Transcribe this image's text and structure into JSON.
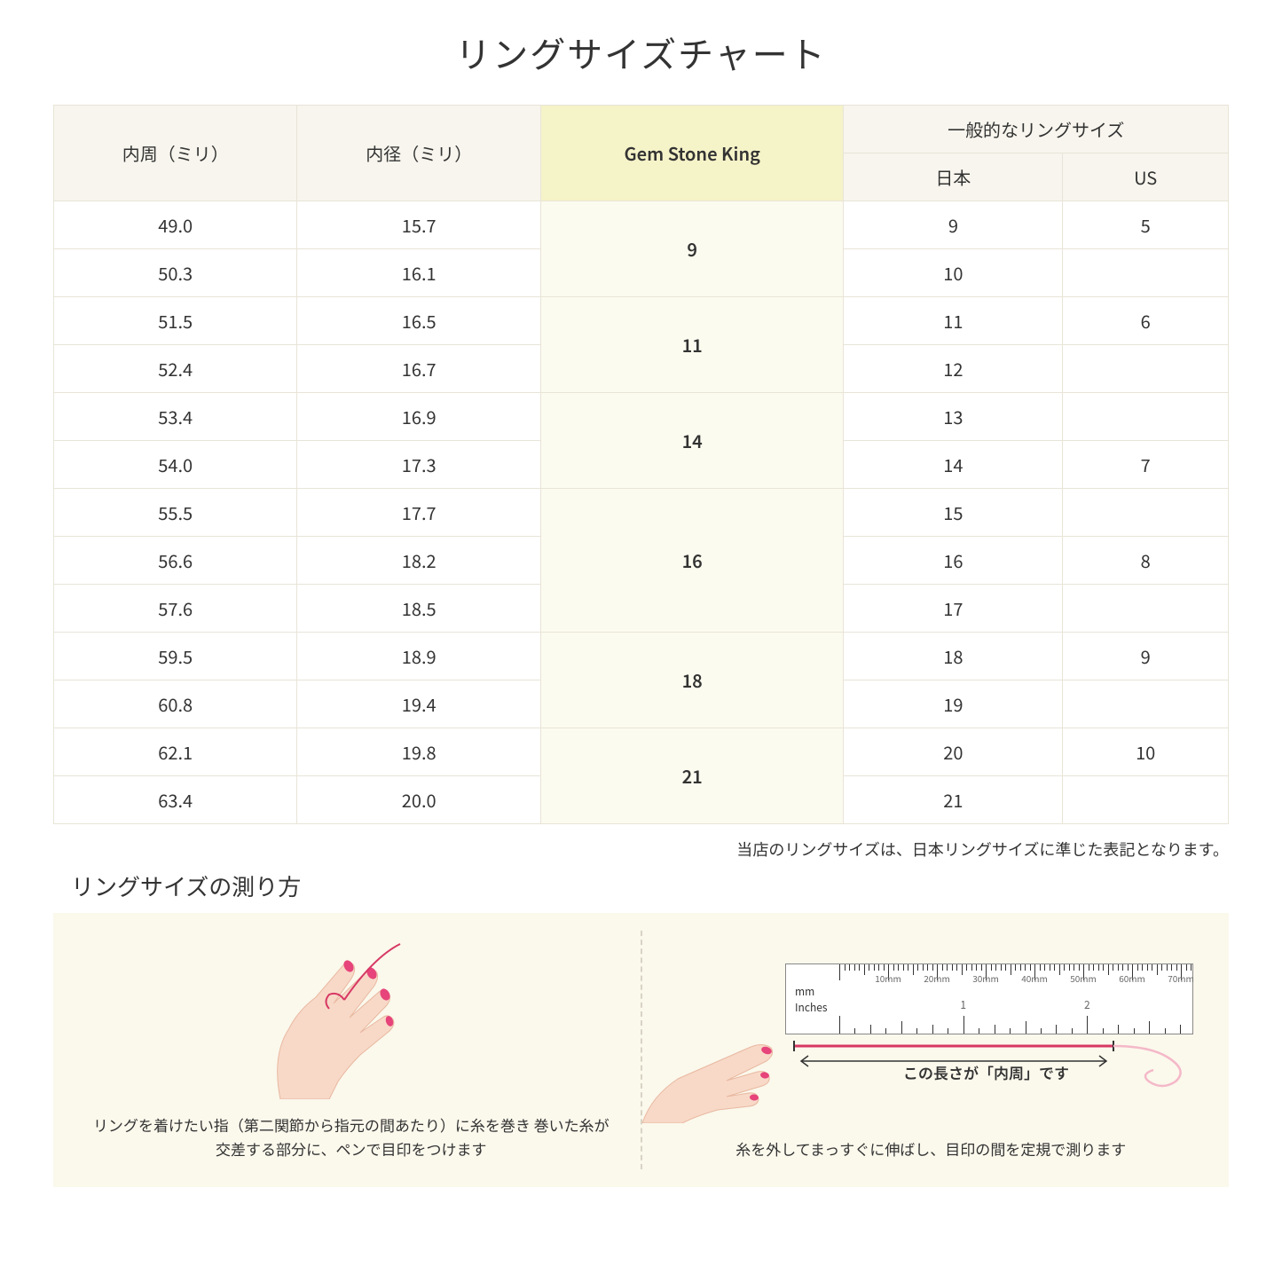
{
  "title": "リングサイズチャート",
  "table": {
    "headers": {
      "col1": "内周（ミリ）",
      "col2": "内径（ミリ）",
      "col3": "Gem Stone King",
      "col4_group": "一般的なリングサイズ",
      "col4a": "日本",
      "col4b": "US"
    },
    "groups": [
      {
        "gsk": "9",
        "rows": [
          {
            "c": "49.0",
            "d": "15.7",
            "jp": "9",
            "us": "5"
          },
          {
            "c": "50.3",
            "d": "16.1",
            "jp": "10",
            "us": ""
          }
        ]
      },
      {
        "gsk": "11",
        "rows": [
          {
            "c": "51.5",
            "d": "16.5",
            "jp": "11",
            "us": "6"
          },
          {
            "c": "52.4",
            "d": "16.7",
            "jp": "12",
            "us": ""
          }
        ]
      },
      {
        "gsk": "14",
        "rows": [
          {
            "c": "53.4",
            "d": "16.9",
            "jp": "13",
            "us": ""
          },
          {
            "c": "54.0",
            "d": "17.3",
            "jp": "14",
            "us": "7"
          }
        ]
      },
      {
        "gsk": "16",
        "rows": [
          {
            "c": "55.5",
            "d": "17.7",
            "jp": "15",
            "us": ""
          },
          {
            "c": "56.6",
            "d": "18.2",
            "jp": "16",
            "us": "8"
          },
          {
            "c": "57.6",
            "d": "18.5",
            "jp": "17",
            "us": ""
          }
        ]
      },
      {
        "gsk": "18",
        "rows": [
          {
            "c": "59.5",
            "d": "18.9",
            "jp": "18",
            "us": "9"
          },
          {
            "c": "60.8",
            "d": "19.4",
            "jp": "19",
            "us": ""
          }
        ]
      },
      {
        "gsk": "21",
        "rows": [
          {
            "c": "62.1",
            "d": "19.8",
            "jp": "20",
            "us": "10"
          },
          {
            "c": "63.4",
            "d": "20.0",
            "jp": "21",
            "us": ""
          }
        ]
      }
    ]
  },
  "note": "当店のリングサイズは、日本リングサイズに準じた表記となります。",
  "howto": {
    "title": "リングサイズの測り方",
    "left_caption": "リングを着けたい指（第二関節から指元の間あたり）に糸を巻き\n巻いた糸が交差する部分に、ペンで目印をつけます",
    "right_caption": "糸を外してまっすぐに伸ばし、目印の間を定規で測ります",
    "measure_label": "この長さが「内周」です",
    "ruler_mm": "mm",
    "ruler_in": "Inches",
    "ruler_mm_marks": [
      "10mm",
      "20mm",
      "30mm",
      "40mm",
      "50mm",
      "60mm",
      "70mm"
    ],
    "ruler_in_marks": [
      "1",
      "2"
    ]
  },
  "colors": {
    "header_bg": "#f7f5ed",
    "highlight_bg": "#f5f3c8",
    "highlight_cell": "#fcfbef",
    "border": "#e8e4d8",
    "howto_bg": "#fbf8ec",
    "skin": "#f8d9c8",
    "nail": "#e6447a",
    "thread": "#d73864"
  }
}
